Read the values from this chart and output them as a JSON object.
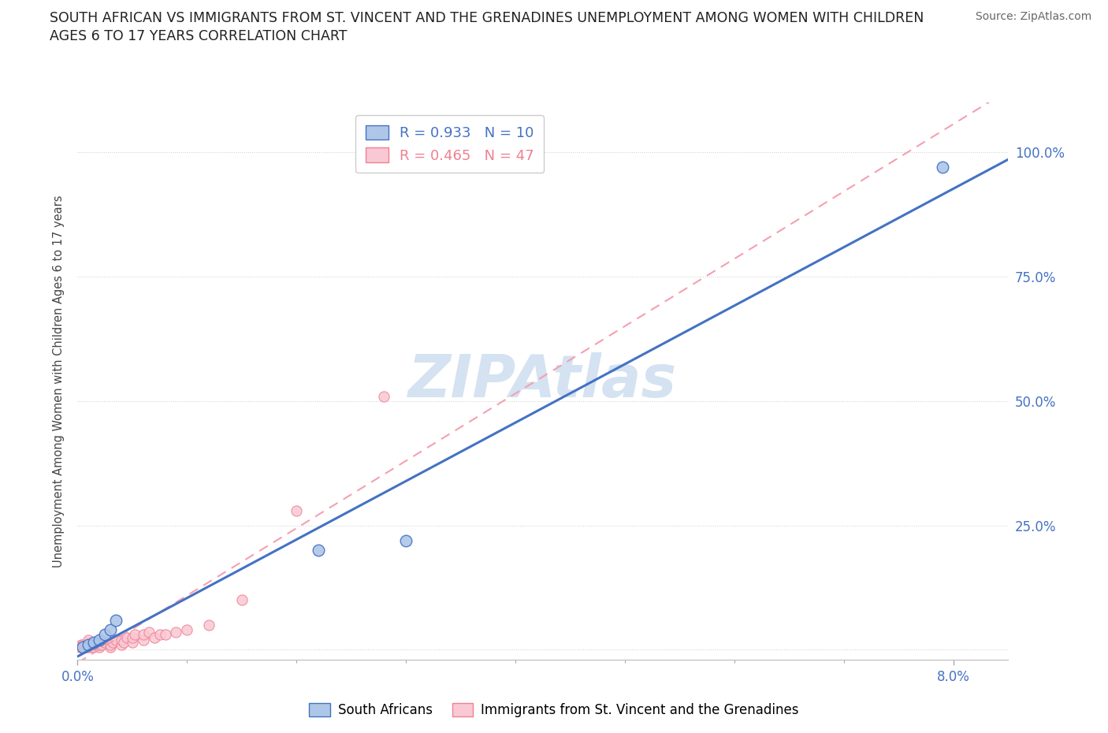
{
  "title_line1": "SOUTH AFRICAN VS IMMIGRANTS FROM ST. VINCENT AND THE GRENADINES UNEMPLOYMENT AMONG WOMEN WITH CHILDREN",
  "title_line2": "AGES 6 TO 17 YEARS CORRELATION CHART",
  "source_text": "Source: ZipAtlas.com",
  "watermark": "ZIPAtlas",
  "xlim": [
    0.0,
    0.085
  ],
  "ylim": [
    -0.02,
    1.1
  ],
  "ylabel": "Unemployment Among Women with Children Ages 6 to 17 years",
  "blue_R": 0.933,
  "blue_N": 10,
  "pink_R": 0.465,
  "pink_N": 47,
  "blue_scatter_x": [
    0.0005,
    0.001,
    0.0015,
    0.002,
    0.0025,
    0.003,
    0.0035,
    0.022,
    0.03,
    0.079
  ],
  "blue_scatter_y": [
    0.005,
    0.01,
    0.015,
    0.02,
    0.03,
    0.04,
    0.06,
    0.2,
    0.22,
    0.97
  ],
  "pink_scatter_x": [
    0.0002,
    0.0003,
    0.0004,
    0.0005,
    0.0006,
    0.0007,
    0.0008,
    0.0009,
    0.001,
    0.001,
    0.001,
    0.001,
    0.0012,
    0.0013,
    0.0014,
    0.0015,
    0.0016,
    0.0018,
    0.002,
    0.002,
    0.002,
    0.0022,
    0.0025,
    0.003,
    0.003,
    0.003,
    0.0032,
    0.0035,
    0.004,
    0.004,
    0.0042,
    0.0045,
    0.005,
    0.005,
    0.0052,
    0.006,
    0.006,
    0.0065,
    0.007,
    0.0075,
    0.008,
    0.009,
    0.01,
    0.012,
    0.015,
    0.02,
    0.028
  ],
  "pink_scatter_y": [
    0.005,
    0.01,
    0.005,
    0.01,
    0.005,
    0.008,
    0.005,
    0.01,
    0.005,
    0.01,
    0.015,
    0.02,
    0.01,
    0.005,
    0.01,
    0.005,
    0.01,
    0.015,
    0.005,
    0.01,
    0.015,
    0.01,
    0.015,
    0.005,
    0.01,
    0.02,
    0.015,
    0.02,
    0.01,
    0.02,
    0.015,
    0.025,
    0.015,
    0.025,
    0.03,
    0.02,
    0.03,
    0.035,
    0.025,
    0.03,
    0.03,
    0.035,
    0.04,
    0.05,
    0.1,
    0.28,
    0.51
  ],
  "blue_line_color": "#4472c4",
  "pink_line_color": "#f4a0b0",
  "pink_line_solid_color": "#f08090",
  "blue_scatter_facecolor": "#aec6e8",
  "blue_scatter_edgecolor": "#4472c4",
  "pink_scatter_facecolor": "#f9c8d4",
  "pink_scatter_edgecolor": "#f08090",
  "grid_color": "#cccccc",
  "watermark_color": "#b8cfe8",
  "axis_tick_color": "#4472c4",
  "ylabel_color": "#444444",
  "background_color": "#ffffff"
}
